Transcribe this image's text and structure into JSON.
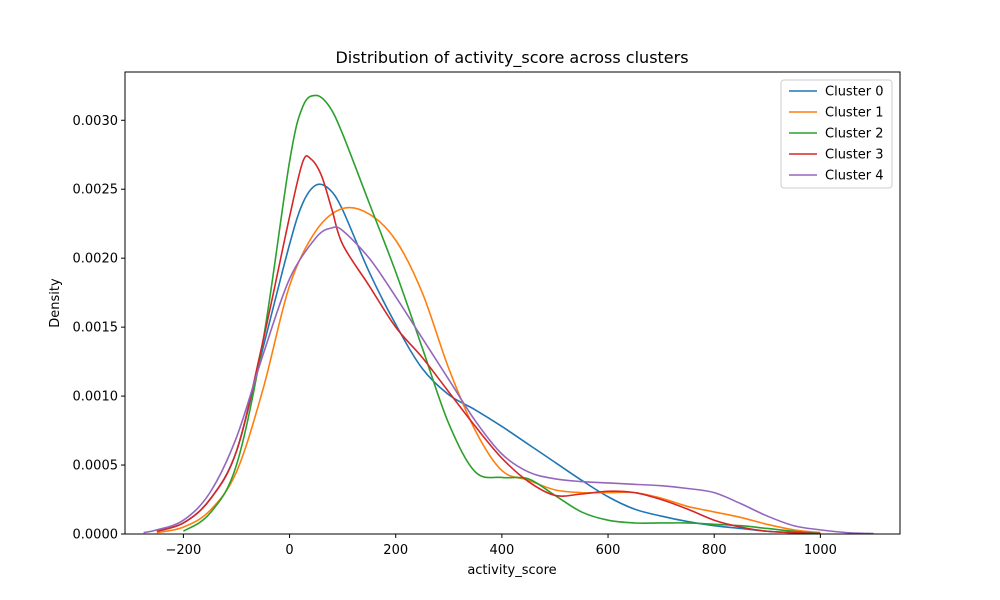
{
  "chart_data": {
    "type": "line",
    "title": "Distribution of activity_score across clusters",
    "xlabel": "activity_score",
    "ylabel": "Density",
    "xlim": [
      -310,
      1150
    ],
    "ylim": [
      0,
      0.00335
    ],
    "xticks": [
      -200,
      0,
      200,
      400,
      600,
      800,
      1000
    ],
    "xtick_labels": [
      "−200",
      "0",
      "200",
      "400",
      "600",
      "800",
      "1000"
    ],
    "yticks": [
      0,
      0.0005,
      0.001,
      0.0015,
      0.002,
      0.0025,
      0.003
    ],
    "ytick_labels": [
      "0.0000",
      "0.0005",
      "0.0010",
      "0.0015",
      "0.0020",
      "0.0025",
      "0.0030"
    ],
    "grid": false,
    "legend_position": "top-right",
    "series": [
      {
        "name": "Cluster 0",
        "color": "#1f77b4",
        "x": [
          -250,
          -200,
          -150,
          -100,
          -50,
          0,
          25,
          50,
          75,
          100,
          150,
          200,
          250,
          300,
          350,
          400,
          450,
          500,
          550,
          600,
          650,
          700,
          750,
          800,
          850,
          900,
          950,
          1000
        ],
        "y": [
          2e-05,
          8e-05,
          0.00025,
          0.0006,
          0.00135,
          0.0021,
          0.0024,
          0.00253,
          0.0025,
          0.00235,
          0.0019,
          0.00152,
          0.0012,
          0.00101,
          0.0009,
          0.00078,
          0.00065,
          0.00052,
          0.00039,
          0.00027,
          0.00018,
          0.00013,
          9e-05,
          6e-05,
          4e-05,
          2e-05,
          1e-05,
          3e-06
        ]
      },
      {
        "name": "Cluster 1",
        "color": "#ff7f0e",
        "x": [
          -250,
          -200,
          -150,
          -100,
          -50,
          0,
          50,
          100,
          150,
          200,
          250,
          300,
          350,
          400,
          450,
          500,
          550,
          600,
          650,
          700,
          750,
          800,
          850,
          900,
          950,
          1000
        ],
        "y": [
          1e-05,
          5e-05,
          0.00017,
          0.00045,
          0.00105,
          0.0018,
          0.0022,
          0.00236,
          0.00232,
          0.00213,
          0.00175,
          0.0012,
          0.00075,
          0.00046,
          0.00039,
          0.00032,
          0.0003,
          0.0003,
          0.0003,
          0.00026,
          0.0002,
          0.00016,
          0.00012,
          7e-05,
          3e-05,
          1e-05
        ]
      },
      {
        "name": "Cluster 2",
        "color": "#2ca02c",
        "x": [
          -200,
          -150,
          -100,
          -50,
          0,
          25,
          50,
          75,
          100,
          150,
          200,
          250,
          300,
          350,
          400,
          450,
          500,
          550,
          600,
          650,
          700,
          750,
          800,
          850,
          900,
          950,
          1000
        ],
        "y": [
          2e-05,
          0.00015,
          0.0005,
          0.0014,
          0.0027,
          0.0031,
          0.00318,
          0.0031,
          0.0029,
          0.0024,
          0.0019,
          0.00135,
          0.0008,
          0.00045,
          0.00041,
          0.0004,
          0.00028,
          0.00016,
          0.0001,
          8e-05,
          8e-05,
          8e-05,
          7e-05,
          6e-05,
          4e-05,
          2e-05,
          5e-06
        ]
      },
      {
        "name": "Cluster 3",
        "color": "#d62728",
        "x": [
          -250,
          -200,
          -150,
          -100,
          -50,
          0,
          25,
          40,
          60,
          80,
          100,
          150,
          200,
          250,
          300,
          350,
          400,
          450,
          500,
          550,
          600,
          650,
          700,
          750,
          800,
          850,
          900,
          950,
          1000
        ],
        "y": [
          2e-05,
          8e-05,
          0.00025,
          0.0006,
          0.0014,
          0.0023,
          0.0027,
          0.00272,
          0.0026,
          0.00235,
          0.0021,
          0.0018,
          0.0015,
          0.00128,
          0.00103,
          0.00078,
          0.00055,
          0.00038,
          0.00028,
          0.00029,
          0.00031,
          0.0003,
          0.00025,
          0.00018,
          0.0001,
          5e-05,
          2e-05,
          1e-05,
          3e-06
        ]
      },
      {
        "name": "Cluster 4",
        "color": "#9467bd",
        "x": [
          -275,
          -250,
          -200,
          -150,
          -100,
          -50,
          0,
          50,
          80,
          100,
          150,
          200,
          250,
          300,
          350,
          400,
          450,
          500,
          550,
          600,
          650,
          700,
          750,
          800,
          850,
          900,
          950,
          1000,
          1050,
          1100
        ],
        "y": [
          1e-05,
          3e-05,
          0.0001,
          0.0003,
          0.0007,
          0.0013,
          0.00185,
          0.00215,
          0.00222,
          0.0022,
          0.002,
          0.00172,
          0.00142,
          0.00112,
          0.00082,
          0.00058,
          0.00045,
          0.0004,
          0.00038,
          0.00037,
          0.00036,
          0.00035,
          0.00033,
          0.0003,
          0.00022,
          0.00013,
          6e-05,
          3e-05,
          1e-05,
          3e-06
        ]
      }
    ]
  }
}
